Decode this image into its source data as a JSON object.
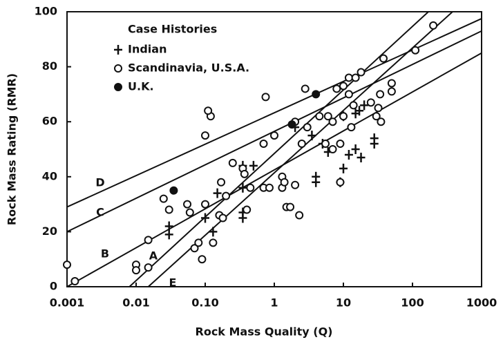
{
  "chart_data": {
    "type": "scatter",
    "xscale": "log",
    "x_label": "Rock Mass Quality (Q)",
    "y_label": "Rock Mass Rating (RMR)",
    "legend_title": "Case Histories",
    "legend": "upper left",
    "xlim": [
      0.001,
      1000
    ],
    "xticks": [
      0.001,
      0.01,
      {
        "value": 0.1,
        "label": "0.10"
      },
      1,
      10,
      100,
      1000
    ],
    "ylim": [
      0,
      100
    ],
    "yticks": [
      0,
      20,
      40,
      60,
      80,
      100
    ],
    "series": [
      {
        "name": "Indian",
        "marker": "plus",
        "color": "#111",
        "x": [
          0.03,
          0.03,
          0.1,
          0.13,
          0.15,
          0.35,
          0.35,
          0.35,
          0.35,
          0.5,
          2,
          3.5,
          4,
          4,
          5,
          6,
          9,
          10,
          10,
          12,
          15,
          15,
          17,
          18,
          20,
          28,
          28
        ],
        "values": [
          22,
          19,
          25,
          20,
          34,
          44,
          36,
          27,
          25,
          44,
          58,
          55,
          40,
          38,
          52,
          49,
          38,
          43,
          62,
          48,
          63,
          50,
          64,
          47,
          66,
          54,
          52
        ]
      },
      {
        "name": "Scandinavia, U.S.A.",
        "marker": "open",
        "color": "#111",
        "x": [
          0.001,
          0.0013,
          0.01,
          0.01,
          0.015,
          0.015,
          0.025,
          0.03,
          0.055,
          0.06,
          0.07,
          0.08,
          0.09,
          0.1,
          0.12,
          0.1,
          0.11,
          0.13,
          0.16,
          0.17,
          0.18,
          0.2,
          0.25,
          0.35,
          0.37,
          0.4,
          0.45,
          0.7,
          0.7,
          0.75,
          0.85,
          1,
          1.3,
          1.3,
          1.4,
          1.5,
          1.7,
          2,
          2,
          2.3,
          2.5,
          2.8,
          3,
          4.5,
          5.5,
          6,
          7,
          8,
          9,
          10,
          10,
          12,
          12,
          13,
          14,
          15,
          18,
          25,
          30,
          32,
          34,
          35,
          38,
          50,
          50,
          110,
          200,
          7,
          9
        ],
        "values": [
          8,
          2,
          8,
          6,
          7,
          17,
          32,
          28,
          30,
          27,
          14,
          16,
          10,
          30,
          62,
          55,
          64,
          16,
          26,
          38,
          25,
          33,
          45,
          43,
          41,
          28,
          36,
          36,
          52,
          69,
          36,
          55,
          40,
          36,
          38,
          29,
          29,
          60,
          37,
          26,
          52,
          72,
          58,
          62,
          52,
          62,
          60,
          72,
          52,
          73,
          62,
          76,
          70,
          58,
          66,
          76,
          78,
          67,
          62,
          65,
          70,
          60,
          83,
          71,
          74,
          86,
          95,
          50,
          38
        ]
      },
      {
        "name": "U.K.",
        "marker": "filled",
        "color": "#111",
        "x": [
          0.035,
          1.8,
          4
        ],
        "values": [
          35,
          59,
          70
        ]
      }
    ],
    "lines": [
      {
        "label": "A",
        "x": [
          0.008,
          170
        ],
        "values": [
          0,
          100
        ]
      },
      {
        "label": "B",
        "x": [
          0.001,
          1000
        ],
        "values": [
          0,
          85
        ]
      },
      {
        "label": "C",
        "x": [
          0.001,
          1000
        ],
        "values": [
          20,
          93
        ]
      },
      {
        "label": "D",
        "x": [
          0.001,
          1000
        ],
        "values": [
          29,
          97.5
        ]
      },
      {
        "label": "E",
        "x": [
          0.015,
          380
        ],
        "values": [
          0,
          100
        ]
      }
    ]
  }
}
